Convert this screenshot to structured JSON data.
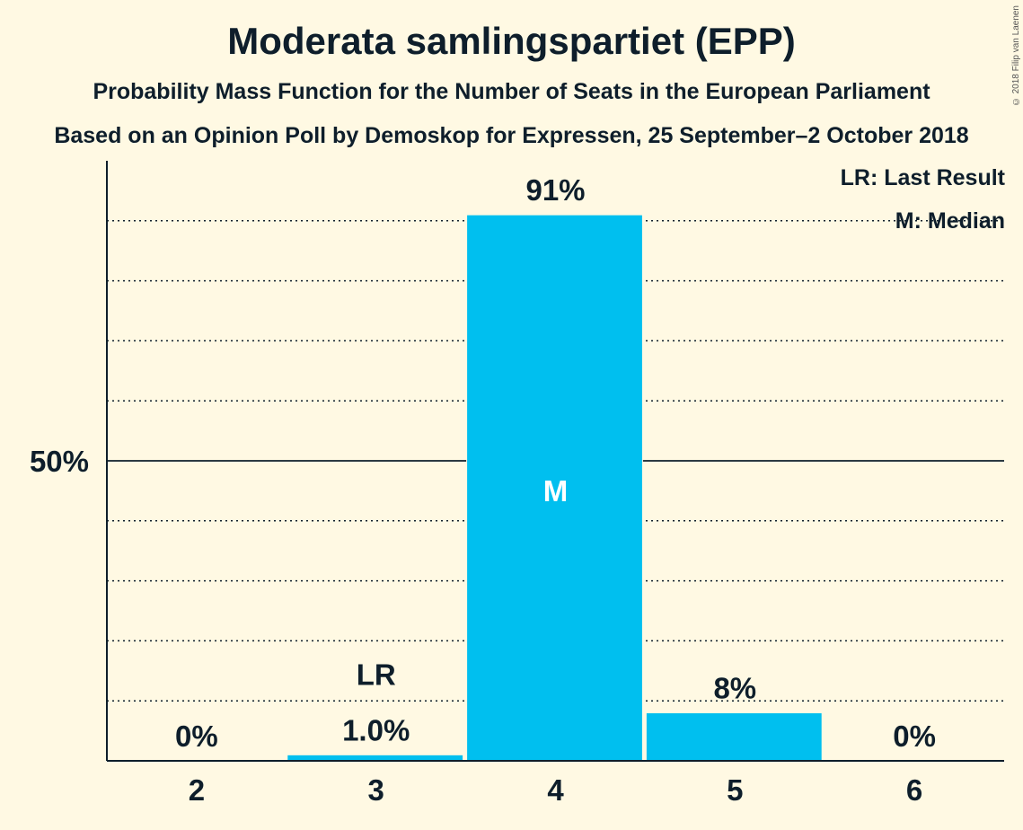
{
  "header": {
    "title": "Moderata samlingspartiet (EPP)",
    "subtitle": "Probability Mass Function for the Number of Seats in the European Parliament",
    "source": "Based on an Opinion Poll by Demoskop for Expressen, 25 September–2 October 2018",
    "copyright": "© 2018 Filip van Laenen"
  },
  "legend": {
    "last_result": "LR: Last Result",
    "median": "M: Median"
  },
  "colors": {
    "background": "#FFF9E3",
    "bar": "#00BFEF",
    "text": "#0E1E2B"
  },
  "chart_data": {
    "type": "bar",
    "categories": [
      "2",
      "3",
      "4",
      "5",
      "6"
    ],
    "values": [
      0,
      1.0,
      91,
      8,
      0
    ],
    "value_labels": [
      "0%",
      "1.0%",
      "91%",
      "8%",
      "0%"
    ],
    "ylim": [
      0,
      100
    ],
    "ytick_label": "50%",
    "ytick_value": 50,
    "gridlines": [
      10,
      20,
      30,
      40,
      60,
      70,
      80,
      90
    ],
    "last_result_category": "3",
    "last_result_label": "LR",
    "median_category": "4",
    "median_label": "M",
    "grid": true,
    "legend_position": "top-right"
  }
}
